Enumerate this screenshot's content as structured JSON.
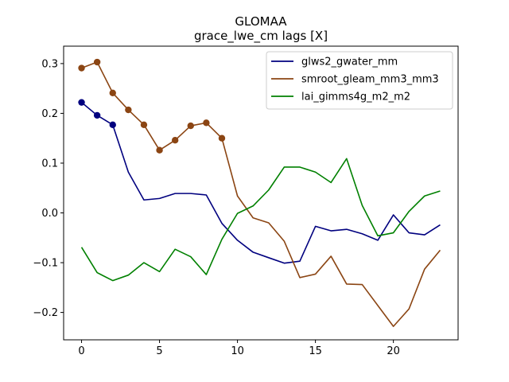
{
  "chart_data": {
    "type": "line",
    "title": "GLOMAA",
    "subtitle": "grace_lwe_cm lags [X]",
    "xlabel": "",
    "ylabel": "",
    "xlim": [
      -1.15,
      24.15
    ],
    "ylim": [
      -0.255,
      0.335
    ],
    "xticks": [
      0,
      5,
      10,
      15,
      20
    ],
    "yticks": [
      -0.2,
      -0.1,
      0.0,
      0.1,
      0.2,
      0.3
    ],
    "ytick_labels": [
      "−0.2",
      "−0.1",
      "0.0",
      "0.1",
      "0.2",
      "0.3"
    ],
    "grid": false,
    "legend_position": "upper right",
    "x": [
      0,
      1,
      2,
      3,
      4,
      5,
      6,
      7,
      8,
      9,
      10,
      11,
      12,
      13,
      14,
      15,
      16,
      17,
      18,
      19,
      20,
      21,
      22,
      23
    ],
    "series": [
      {
        "name": "glws2_gwater_mm",
        "color": "#00007f",
        "values": [
          0.222,
          0.196,
          0.177,
          0.082,
          0.026,
          0.029,
          0.039,
          0.039,
          0.036,
          -0.021,
          -0.055,
          -0.079,
          -0.09,
          -0.101,
          -0.097,
          -0.027,
          -0.036,
          -0.033,
          -0.042,
          -0.055,
          -0.004,
          -0.04,
          -0.044,
          -0.024
        ],
        "markers": [
          0,
          1,
          2
        ]
      },
      {
        "name": "smroot_gleam_mm3_mm3",
        "color": "#8b4513",
        "values": [
          0.291,
          0.303,
          0.241,
          0.207,
          0.177,
          0.126,
          0.146,
          0.175,
          0.181,
          0.15,
          0.034,
          -0.01,
          -0.02,
          -0.057,
          -0.13,
          -0.123,
          -0.087,
          -0.143,
          -0.144,
          -0.186,
          -0.228,
          -0.193,
          -0.113,
          -0.075
        ],
        "markers": [
          0,
          1,
          2,
          3,
          4,
          5,
          6,
          7,
          8,
          9
        ]
      },
      {
        "name": "lai_gimms4g_m2_m2",
        "color": "#008000",
        "values": [
          -0.069,
          -0.12,
          -0.136,
          -0.125,
          -0.1,
          -0.118,
          -0.073,
          -0.088,
          -0.124,
          -0.053,
          -0.001,
          0.014,
          0.046,
          0.092,
          0.092,
          0.082,
          0.061,
          0.109,
          0.015,
          -0.046,
          -0.04,
          0.003,
          0.034,
          0.044
        ],
        "markers": []
      }
    ]
  }
}
